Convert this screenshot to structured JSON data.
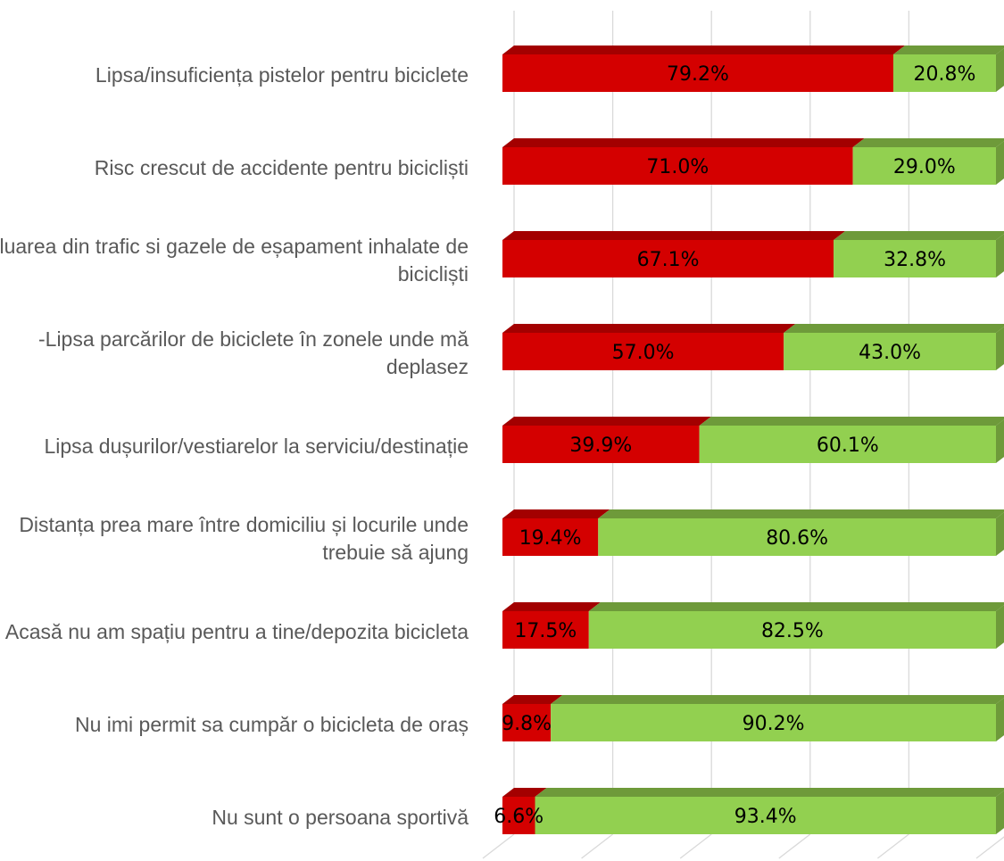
{
  "chart_data": {
    "type": "bar",
    "orientation": "horizontal",
    "stacked": true,
    "percent": true,
    "three_d": true,
    "title": "",
    "xlabel": "",
    "ylabel": "",
    "xlim": [
      0,
      100
    ],
    "grid": true,
    "legend": "none",
    "categories": [
      "Lipsa/insuficiența pistelor pentru biciclete",
      "Risc crescut de accidente pentru bicicliști",
      "Poluarea din trafic si gazele de eșapament inhalate de bicicliști",
      "-Lipsa parcărilor de biciclete în  zonele unde mă deplasez",
      "Lipsa dușurilor/vestiarelor la serviciu/destinație",
      "Distanța prea mare între domiciliu și locurile unde trebuie să ajung",
      "Acasă nu am spațiu pentru a  tine/depozita bicicleta",
      "Nu imi permit sa cumpăr o bicicleta de oraș",
      "Nu sunt o persoana sportivă"
    ],
    "series": [
      {
        "values": [
          79.2,
          71.0,
          67.1,
          57.0,
          39.9,
          19.4,
          17.5,
          9.8,
          6.6
        ],
        "labels": [
          "79.2%",
          "71.0%",
          "67.1%",
          "57.0%",
          "39.9%",
          "19.4%",
          "17.5%",
          "9.8%",
          "6.6%"
        ]
      },
      {
        "values": [
          20.8,
          29.0,
          32.8,
          43.0,
          60.1,
          80.6,
          82.5,
          90.2,
          93.4
        ],
        "labels": [
          "20.8%",
          "29.0%",
          "32.8%",
          "43.0%",
          "60.1%",
          "80.6%",
          "82.5%",
          "90.2%",
          "93.4%"
        ]
      }
    ],
    "colors": {
      "series0_front": "#d40000",
      "series0_top": "#a30000",
      "series1_front": "#92d050",
      "series1_top": "#6e9a3a",
      "series1_side": "#6e9a3a",
      "grid": "#d9d9d9"
    }
  }
}
